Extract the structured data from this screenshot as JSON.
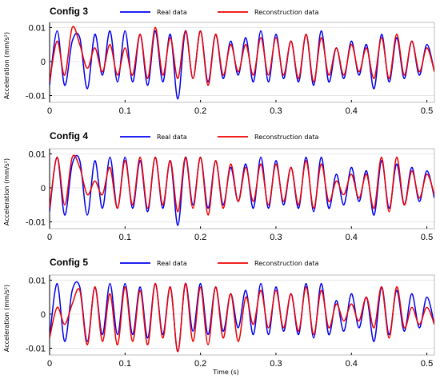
{
  "chart_data": [
    {
      "type": "line",
      "title": "Config 3",
      "ylabel": "Acceleration (mm/s²)",
      "xlabel": "",
      "xlim": [
        0,
        0.51
      ],
      "ylim": [
        -0.012,
        0.0115
      ],
      "x_ticks": [
        0,
        0.1,
        0.2,
        0.3,
        0.4,
        0.5
      ],
      "x_tick_labels": [
        "0",
        "0.1",
        "0.2",
        "0.3",
        "0.4",
        "0.5"
      ],
      "y_ticks": [
        -0.01,
        0,
        0.01
      ],
      "y_tick_labels": [
        "-0.01",
        "0",
        "0.01"
      ],
      "legend_position": "top",
      "series": [
        {
          "name": "Real data",
          "color": "#0000ee",
          "x": [
            0,
            0.01,
            0.02,
            0.03,
            0.04,
            0.05,
            0.06,
            0.07,
            0.08,
            0.09,
            0.1,
            0.11,
            0.12,
            0.13,
            0.14,
            0.15,
            0.16,
            0.17,
            0.18,
            0.19,
            0.2,
            0.21,
            0.22,
            0.23,
            0.24,
            0.25,
            0.26,
            0.27,
            0.28,
            0.29,
            0.3,
            0.31,
            0.32,
            0.33,
            0.34,
            0.35,
            0.36,
            0.37,
            0.38,
            0.39,
            0.4,
            0.41,
            0.42,
            0.43,
            0.44,
            0.45,
            0.46,
            0.47,
            0.48,
            0.49,
            0.5,
            0.51
          ],
          "y": [
            -0.007,
            0.009,
            -0.007,
            0.006,
            0.007,
            -0.008,
            0.008,
            -0.004,
            0.009,
            -0.006,
            0.009,
            -0.006,
            0.008,
            -0.007,
            0.009,
            -0.006,
            0.008,
            -0.011,
            0.009,
            -0.005,
            0.009,
            -0.006,
            0.008,
            -0.005,
            0.006,
            -0.004,
            0.007,
            -0.006,
            0.009,
            -0.006,
            0.008,
            -0.005,
            0.006,
            -0.006,
            0.008,
            -0.007,
            0.009,
            -0.006,
            0.004,
            -0.005,
            0.006,
            -0.004,
            0.005,
            -0.008,
            0.008,
            -0.006,
            0.007,
            -0.005,
            0.006,
            -0.004,
            0.005,
            -0.003
          ]
        },
        {
          "name": "Reconstruction data",
          "color": "#ee0000",
          "x": [
            0,
            0.01,
            0.02,
            0.03,
            0.04,
            0.05,
            0.06,
            0.07,
            0.08,
            0.09,
            0.1,
            0.11,
            0.12,
            0.13,
            0.14,
            0.15,
            0.16,
            0.17,
            0.18,
            0.19,
            0.2,
            0.21,
            0.22,
            0.23,
            0.24,
            0.25,
            0.26,
            0.27,
            0.28,
            0.29,
            0.3,
            0.31,
            0.32,
            0.33,
            0.34,
            0.35,
            0.36,
            0.37,
            0.38,
            0.39,
            0.4,
            0.41,
            0.42,
            0.43,
            0.44,
            0.45,
            0.46,
            0.47,
            0.48,
            0.49,
            0.5,
            0.51
          ],
          "y": [
            -0.006,
            0.006,
            -0.004,
            0.01,
            0.005,
            -0.002,
            0.004,
            -0.003,
            0.005,
            -0.004,
            0.004,
            -0.004,
            0.008,
            -0.005,
            0.01,
            -0.004,
            0.007,
            -0.005,
            0.009,
            -0.005,
            0.009,
            -0.007,
            0.008,
            -0.004,
            0.005,
            -0.003,
            0.005,
            -0.004,
            0.007,
            -0.004,
            0.007,
            -0.004,
            0.006,
            -0.005,
            0.008,
            -0.006,
            0.007,
            -0.004,
            0.004,
            -0.004,
            0.005,
            -0.003,
            0.004,
            -0.005,
            0.007,
            -0.005,
            0.008,
            -0.004,
            0.006,
            -0.003,
            0.004,
            -0.003
          ]
        }
      ]
    },
    {
      "type": "line",
      "title": "Config 4",
      "ylabel": "Acceleration (mm/s²)",
      "xlabel": "",
      "xlim": [
        0,
        0.51
      ],
      "ylim": [
        -0.012,
        0.0115
      ],
      "x_ticks": [
        0,
        0.1,
        0.2,
        0.3,
        0.4,
        0.5
      ],
      "x_tick_labels": [
        "0",
        "0.1",
        "0.2",
        "0.3",
        "0.4",
        "0.5"
      ],
      "y_ticks": [
        -0.01,
        0,
        0.01
      ],
      "y_tick_labels": [
        "-0.01",
        "0",
        "0.01"
      ],
      "legend_position": "top",
      "series": [
        {
          "name": "Real data",
          "color": "#0000ee",
          "x": [
            0,
            0.01,
            0.02,
            0.03,
            0.04,
            0.05,
            0.06,
            0.07,
            0.08,
            0.09,
            0.1,
            0.11,
            0.12,
            0.13,
            0.14,
            0.15,
            0.16,
            0.17,
            0.18,
            0.19,
            0.2,
            0.21,
            0.22,
            0.23,
            0.24,
            0.25,
            0.26,
            0.27,
            0.28,
            0.29,
            0.3,
            0.31,
            0.32,
            0.33,
            0.34,
            0.35,
            0.36,
            0.37,
            0.38,
            0.39,
            0.4,
            0.41,
            0.42,
            0.43,
            0.44,
            0.45,
            0.46,
            0.47,
            0.48,
            0.49,
            0.5,
            0.51
          ],
          "y": [
            -0.007,
            0.009,
            -0.008,
            0.007,
            0.008,
            -0.008,
            0.008,
            -0.006,
            0.009,
            -0.006,
            0.009,
            -0.006,
            0.008,
            -0.007,
            0.009,
            -0.006,
            0.008,
            -0.011,
            0.009,
            -0.005,
            0.009,
            -0.006,
            0.008,
            -0.005,
            0.006,
            -0.004,
            0.007,
            -0.006,
            0.009,
            -0.006,
            0.008,
            -0.005,
            0.006,
            -0.006,
            0.009,
            -0.007,
            0.009,
            -0.006,
            0.004,
            -0.005,
            0.006,
            -0.004,
            0.005,
            -0.008,
            0.008,
            -0.006,
            0.007,
            -0.005,
            0.006,
            -0.004,
            0.005,
            -0.003
          ]
        },
        {
          "name": "Reconstruction data",
          "color": "#ee0000",
          "x": [
            0,
            0.01,
            0.02,
            0.03,
            0.04,
            0.05,
            0.06,
            0.07,
            0.08,
            0.09,
            0.1,
            0.11,
            0.12,
            0.13,
            0.14,
            0.15,
            0.16,
            0.17,
            0.18,
            0.19,
            0.2,
            0.21,
            0.22,
            0.23,
            0.24,
            0.25,
            0.26,
            0.27,
            0.28,
            0.29,
            0.3,
            0.31,
            0.32,
            0.33,
            0.34,
            0.35,
            0.36,
            0.37,
            0.38,
            0.39,
            0.4,
            0.41,
            0.42,
            0.43,
            0.44,
            0.45,
            0.46,
            0.47,
            0.48,
            0.49,
            0.5,
            0.51
          ],
          "y": [
            -0.006,
            0.009,
            -0.005,
            0.009,
            0.006,
            -0.002,
            0.002,
            -0.002,
            0.006,
            -0.006,
            0.008,
            -0.005,
            0.009,
            -0.006,
            0.009,
            -0.005,
            0.008,
            -0.007,
            0.009,
            -0.006,
            0.009,
            -0.008,
            0.008,
            -0.006,
            0.007,
            -0.004,
            0.006,
            -0.004,
            0.007,
            -0.005,
            0.007,
            -0.004,
            0.006,
            -0.005,
            0.008,
            -0.006,
            0.007,
            -0.004,
            0.002,
            -0.002,
            0.004,
            -0.003,
            0.004,
            -0.006,
            0.009,
            -0.007,
            0.009,
            -0.005,
            0.005,
            -0.003,
            0.004,
            -0.002
          ]
        }
      ]
    },
    {
      "type": "line",
      "title": "Config 5",
      "ylabel": "Acceleration (mm/s²)",
      "xlabel": "Time (s)",
      "xlim": [
        0,
        0.51
      ],
      "ylim": [
        -0.012,
        0.0115
      ],
      "x_ticks": [
        0,
        0.1,
        0.2,
        0.3,
        0.4,
        0.5
      ],
      "x_tick_labels": [
        "0",
        "0.1",
        "0.2",
        "0.3",
        "0.4",
        "0.5"
      ],
      "y_ticks": [
        -0.01,
        0,
        0.01
      ],
      "y_tick_labels": [
        "-0.01",
        "0",
        "0.01"
      ],
      "legend_position": "top",
      "series": [
        {
          "name": "Real data",
          "color": "#0000ee",
          "x": [
            0,
            0.01,
            0.02,
            0.03,
            0.04,
            0.05,
            0.06,
            0.07,
            0.08,
            0.09,
            0.1,
            0.11,
            0.12,
            0.13,
            0.14,
            0.15,
            0.16,
            0.17,
            0.18,
            0.19,
            0.2,
            0.21,
            0.22,
            0.23,
            0.24,
            0.25,
            0.26,
            0.27,
            0.28,
            0.29,
            0.3,
            0.31,
            0.32,
            0.33,
            0.34,
            0.35,
            0.36,
            0.37,
            0.38,
            0.39,
            0.4,
            0.41,
            0.42,
            0.43,
            0.44,
            0.45,
            0.46,
            0.47,
            0.48,
            0.49,
            0.5,
            0.51
          ],
          "y": [
            -0.007,
            0.009,
            -0.008,
            0.007,
            0.008,
            -0.008,
            0.008,
            -0.006,
            0.009,
            -0.006,
            0.009,
            -0.006,
            0.008,
            -0.007,
            0.009,
            -0.006,
            0.008,
            -0.011,
            0.009,
            -0.005,
            0.009,
            -0.006,
            0.008,
            -0.005,
            0.006,
            -0.004,
            0.007,
            -0.006,
            0.009,
            -0.006,
            0.008,
            -0.005,
            0.006,
            -0.006,
            0.009,
            -0.007,
            0.009,
            -0.006,
            0.004,
            -0.005,
            0.006,
            -0.004,
            0.005,
            -0.008,
            0.008,
            -0.006,
            0.007,
            -0.005,
            0.006,
            -0.004,
            0.005,
            -0.003
          ]
        },
        {
          "name": "Reconstruction data",
          "color": "#ee0000",
          "x": [
            0,
            0.01,
            0.02,
            0.03,
            0.04,
            0.05,
            0.06,
            0.07,
            0.08,
            0.09,
            0.1,
            0.11,
            0.12,
            0.13,
            0.14,
            0.15,
            0.16,
            0.17,
            0.18,
            0.19,
            0.2,
            0.21,
            0.22,
            0.23,
            0.24,
            0.25,
            0.26,
            0.27,
            0.28,
            0.29,
            0.3,
            0.31,
            0.32,
            0.33,
            0.34,
            0.35,
            0.36,
            0.37,
            0.38,
            0.39,
            0.4,
            0.41,
            0.42,
            0.43,
            0.44,
            0.45,
            0.46,
            0.47,
            0.48,
            0.49,
            0.5,
            0.51
          ],
          "y": [
            -0.007,
            0.002,
            -0.003,
            0.003,
            0.007,
            -0.009,
            0.008,
            -0.008,
            0.006,
            -0.009,
            0.008,
            -0.008,
            0.007,
            -0.009,
            0.009,
            -0.007,
            0.008,
            -0.011,
            0.009,
            -0.008,
            0.008,
            -0.009,
            0.008,
            -0.007,
            0.006,
            -0.008,
            0.005,
            -0.003,
            0.007,
            -0.004,
            0.007,
            -0.004,
            0.006,
            -0.005,
            0.008,
            -0.006,
            0.007,
            -0.004,
            0.003,
            -0.002,
            0.003,
            -0.002,
            0.005,
            -0.004,
            0.008,
            -0.007,
            0.008,
            -0.004,
            0.002,
            -0.003,
            0.002,
            -0.003
          ]
        }
      ]
    }
  ]
}
